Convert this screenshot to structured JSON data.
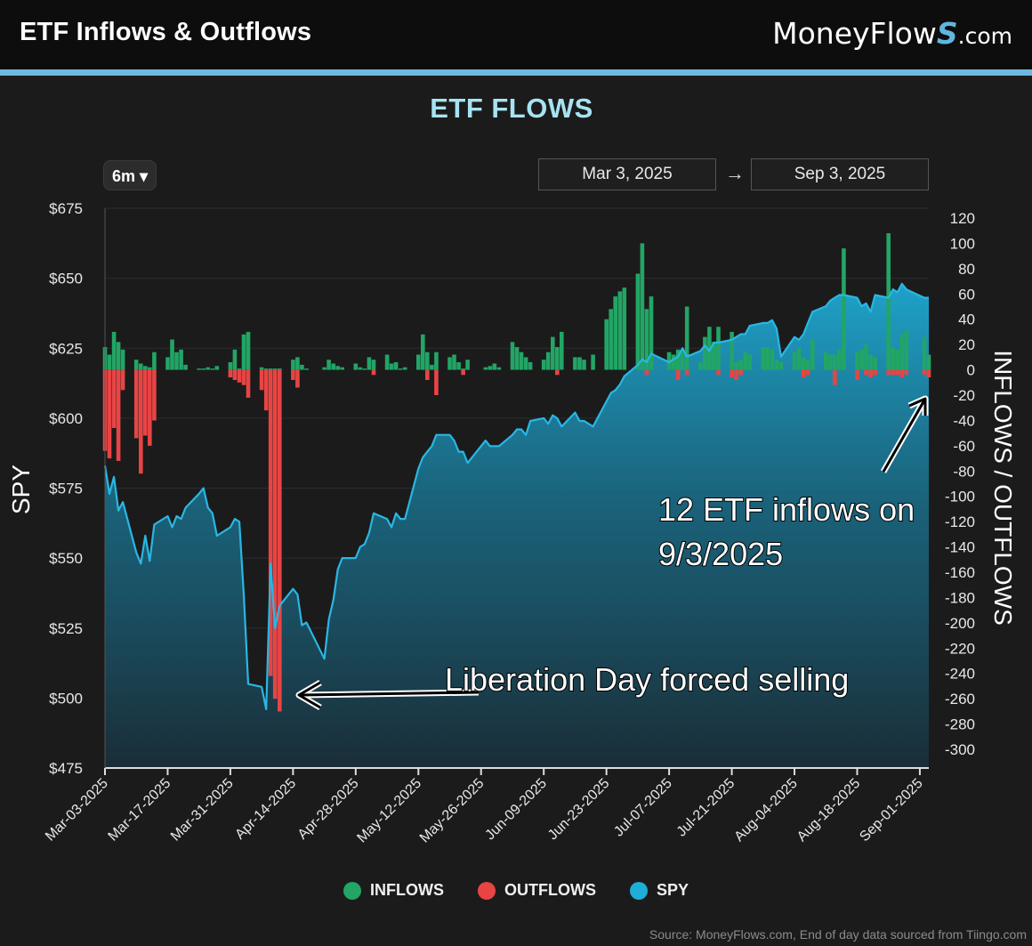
{
  "header": {
    "title": "ETF Inflows & Outflows",
    "brand_prefix": "MoneyFlow",
    "brand_mark": "S",
    "brand_suffix": ".com"
  },
  "controls": {
    "range": "6m ▾",
    "start_date": "Mar 3, 2025",
    "arrow": "→",
    "end_date": "Sep 3, 2025"
  },
  "annotations": {
    "liberation": "Liberation Day forced selling",
    "inflows_line1": "12 ETF inflows on",
    "inflows_line2": "9/3/2025"
  },
  "legend": [
    {
      "label": "INFLOWS",
      "color": "#22a565"
    },
    {
      "label": "OUTFLOWS",
      "color": "#e84444"
    },
    {
      "label": "SPY",
      "color": "#1eaed8"
    }
  ],
  "source": "Source: MoneyFlows.com, End of day data sourced from Tiingo.com",
  "chart_data": {
    "type": "bar",
    "title": "ETF FLOWS",
    "ylabel_left": "SPY",
    "ylabel_right": "INFLOWS / OUTFLOWS",
    "y_left_ticks": [
      "$675",
      "$650",
      "$625",
      "$600",
      "$575",
      "$550",
      "$525",
      "$500",
      "$475"
    ],
    "y_right_ticks": [
      "120",
      "100",
      "80",
      "60",
      "40",
      "20",
      "0",
      "-20",
      "-40",
      "-60",
      "-80",
      "-100",
      "-120",
      "-140",
      "-160",
      "-180",
      "-200",
      "-220",
      "-240",
      "-260",
      "-280",
      "-300"
    ],
    "ylim_left": [
      475,
      675
    ],
    "ylim_right": [
      -300,
      120
    ],
    "x_ticks": [
      "Mar-03-2025",
      "Mar-17-2025",
      "Mar-31-2025",
      "Apr-14-2025",
      "Apr-28-2025",
      "May-12-2025",
      "May-26-2025",
      "Jun-09-2025",
      "Jun-23-2025",
      "Jul-07-2025",
      "Jul-21-2025",
      "Aug-04-2025",
      "Aug-18-2025",
      "Sep-01-2025"
    ],
    "xlim": [
      "Mar-03-2025",
      "Sep-03-2025"
    ],
    "series": [
      {
        "name": "INFLOWS",
        "color": "#22a565",
        "x": [
          "Mar-03-2025",
          "Mar-04-2025",
          "Mar-05-2025",
          "Mar-06-2025",
          "Mar-07-2025",
          "Mar-10-2025",
          "Mar-11-2025",
          "Mar-12-2025",
          "Mar-13-2025",
          "Mar-14-2025",
          "Mar-17-2025",
          "Mar-18-2025",
          "Mar-19-2025",
          "Mar-20-2025",
          "Mar-21-2025",
          "Mar-24-2025",
          "Mar-25-2025",
          "Mar-26-2025",
          "Mar-27-2025",
          "Mar-28-2025",
          "Mar-31-2025",
          "Apr-01-2025",
          "Apr-02-2025",
          "Apr-03-2025",
          "Apr-04-2025",
          "Apr-07-2025",
          "Apr-08-2025",
          "Apr-09-2025",
          "Apr-10-2025",
          "Apr-11-2025",
          "Apr-14-2025",
          "Apr-15-2025",
          "Apr-16-2025",
          "Apr-17-2025",
          "Apr-21-2025",
          "Apr-22-2025",
          "Apr-23-2025",
          "Apr-24-2025",
          "Apr-25-2025",
          "Apr-28-2025",
          "Apr-29-2025",
          "Apr-30-2025",
          "May-01-2025",
          "May-02-2025",
          "May-05-2025",
          "May-06-2025",
          "May-07-2025",
          "May-08-2025",
          "May-09-2025",
          "May-12-2025",
          "May-13-2025",
          "May-14-2025",
          "May-15-2025",
          "May-16-2025",
          "May-19-2025",
          "May-20-2025",
          "May-21-2025",
          "May-22-2025",
          "May-23-2025",
          "May-27-2025",
          "May-28-2025",
          "May-29-2025",
          "May-30-2025",
          "Jun-02-2025",
          "Jun-03-2025",
          "Jun-04-2025",
          "Jun-05-2025",
          "Jun-06-2025",
          "Jun-09-2025",
          "Jun-10-2025",
          "Jun-11-2025",
          "Jun-12-2025",
          "Jun-13-2025",
          "Jun-16-2025",
          "Jun-17-2025",
          "Jun-18-2025",
          "Jun-20-2025",
          "Jun-23-2025",
          "Jun-24-2025",
          "Jun-25-2025",
          "Jun-26-2025",
          "Jun-27-2025",
          "Jun-30-2025",
          "Jul-01-2025",
          "Jul-02-2025",
          "Jul-03-2025",
          "Jul-07-2025",
          "Jul-08-2025",
          "Jul-09-2025",
          "Jul-10-2025",
          "Jul-11-2025",
          "Jul-14-2025",
          "Jul-15-2025",
          "Jul-16-2025",
          "Jul-17-2025",
          "Jul-18-2025",
          "Jul-21-2025",
          "Jul-22-2025",
          "Jul-23-2025",
          "Jul-24-2025",
          "Jul-25-2025",
          "Jul-28-2025",
          "Jul-29-2025",
          "Jul-30-2025",
          "Jul-31-2025",
          "Aug-01-2025",
          "Aug-04-2025",
          "Aug-05-2025",
          "Aug-06-2025",
          "Aug-07-2025",
          "Aug-08-2025",
          "Aug-11-2025",
          "Aug-12-2025",
          "Aug-13-2025",
          "Aug-14-2025",
          "Aug-15-2025",
          "Aug-18-2025",
          "Aug-19-2025",
          "Aug-20-2025",
          "Aug-21-2025",
          "Aug-22-2025",
          "Aug-25-2025",
          "Aug-26-2025",
          "Aug-27-2025",
          "Aug-28-2025",
          "Aug-29-2025",
          "Sep-02-2025",
          "Sep-03-2025"
        ],
        "values": [
          18,
          12,
          30,
          22,
          16,
          8,
          5,
          3,
          2,
          14,
          10,
          24,
          14,
          16,
          4,
          1,
          1,
          2,
          1,
          3,
          6,
          16,
          1,
          28,
          30,
          2,
          1,
          1,
          1,
          1,
          8,
          10,
          4,
          1,
          2,
          8,
          5,
          3,
          2,
          5,
          2,
          1,
          10,
          8,
          12,
          5,
          6,
          1,
          2,
          12,
          28,
          14,
          4,
          14,
          10,
          12,
          6,
          1,
          8,
          2,
          3,
          5,
          2,
          22,
          18,
          14,
          10,
          6,
          8,
          14,
          26,
          18,
          30,
          10,
          10,
          8,
          12,
          40,
          48,
          58,
          62,
          65,
          76,
          100,
          48,
          58,
          14,
          12,
          16,
          14,
          50,
          6,
          26,
          34,
          22,
          34,
          30,
          6,
          8,
          14,
          12,
          18,
          18,
          16,
          8,
          6,
          14,
          18,
          10,
          8,
          24,
          14,
          12,
          12,
          16,
          96,
          14,
          16,
          20,
          12,
          10,
          108,
          18,
          16,
          28,
          32,
          26,
          12
        ]
      },
      {
        "name": "OUTFLOWS",
        "color": "#e84444",
        "x": [
          "Mar-03-2025",
          "Mar-04-2025",
          "Mar-05-2025",
          "Mar-06-2025",
          "Mar-07-2025",
          "Mar-10-2025",
          "Mar-11-2025",
          "Mar-12-2025",
          "Mar-13-2025",
          "Mar-14-2025",
          "Mar-31-2025",
          "Apr-01-2025",
          "Apr-02-2025",
          "Apr-03-2025",
          "Apr-04-2025",
          "Apr-07-2025",
          "Apr-08-2025",
          "Apr-09-2025",
          "Apr-10-2025",
          "Apr-11-2025",
          "Apr-14-2025",
          "Apr-15-2025",
          "May-02-2025",
          "May-14-2025",
          "May-16-2025",
          "May-22-2025",
          "Jun-12-2025",
          "Jul-02-2025",
          "Jul-09-2025",
          "Jul-11-2025",
          "Jul-18-2025",
          "Jul-21-2025",
          "Jul-22-2025",
          "Jul-23-2025",
          "Aug-06-2025",
          "Aug-07-2025",
          "Aug-13-2025",
          "Aug-18-2025",
          "Aug-20-2025",
          "Aug-21-2025",
          "Aug-22-2025",
          "Aug-25-2025",
          "Aug-26-2025",
          "Aug-27-2025",
          "Aug-28-2025",
          "Aug-29-2025",
          "Sep-02-2025",
          "Sep-03-2025"
        ],
        "values": [
          -64,
          -70,
          -46,
          -72,
          -16,
          -54,
          -82,
          -52,
          -60,
          -40,
          -6,
          -8,
          -10,
          -12,
          -22,
          -16,
          -32,
          -242,
          -260,
          -270,
          -8,
          -14,
          -4,
          -8,
          -20,
          -4,
          -4,
          -4,
          -8,
          -4,
          -4,
          -6,
          -8,
          -4,
          -6,
          -4,
          -12,
          -8,
          -4,
          -6,
          -4,
          -4,
          -4,
          -4,
          -6,
          -4,
          -4,
          -6
        ]
      },
      {
        "name": "SPY",
        "color": "#1eaed8",
        "x": [
          "Mar-03-2025",
          "Mar-04-2025",
          "Mar-05-2025",
          "Mar-06-2025",
          "Mar-07-2025",
          "Mar-10-2025",
          "Mar-11-2025",
          "Mar-12-2025",
          "Mar-13-2025",
          "Mar-14-2025",
          "Mar-17-2025",
          "Mar-18-2025",
          "Mar-19-2025",
          "Mar-20-2025",
          "Mar-21-2025",
          "Mar-24-2025",
          "Mar-25-2025",
          "Mar-26-2025",
          "Mar-27-2025",
          "Mar-28-2025",
          "Mar-31-2025",
          "Apr-01-2025",
          "Apr-02-2025",
          "Apr-03-2025",
          "Apr-04-2025",
          "Apr-07-2025",
          "Apr-08-2025",
          "Apr-09-2025",
          "Apr-10-2025",
          "Apr-11-2025",
          "Apr-14-2025",
          "Apr-15-2025",
          "Apr-16-2025",
          "Apr-17-2025",
          "Apr-21-2025",
          "Apr-22-2025",
          "Apr-23-2025",
          "Apr-24-2025",
          "Apr-25-2025",
          "Apr-28-2025",
          "Apr-29-2025",
          "Apr-30-2025",
          "May-01-2025",
          "May-02-2025",
          "May-05-2025",
          "May-06-2025",
          "May-07-2025",
          "May-08-2025",
          "May-09-2025",
          "May-12-2025",
          "May-13-2025",
          "May-14-2025",
          "May-15-2025",
          "May-16-2025",
          "May-19-2025",
          "May-20-2025",
          "May-21-2025",
          "May-22-2025",
          "May-23-2025",
          "May-27-2025",
          "May-28-2025",
          "May-29-2025",
          "May-30-2025",
          "Jun-02-2025",
          "Jun-03-2025",
          "Jun-04-2025",
          "Jun-05-2025",
          "Jun-06-2025",
          "Jun-09-2025",
          "Jun-10-2025",
          "Jun-11-2025",
          "Jun-12-2025",
          "Jun-13-2025",
          "Jun-16-2025",
          "Jun-17-2025",
          "Jun-18-2025",
          "Jun-20-2025",
          "Jun-23-2025",
          "Jun-24-2025",
          "Jun-25-2025",
          "Jun-26-2025",
          "Jun-27-2025",
          "Jun-30-2025",
          "Jul-01-2025",
          "Jul-02-2025",
          "Jul-03-2025",
          "Jul-07-2025",
          "Jul-08-2025",
          "Jul-09-2025",
          "Jul-10-2025",
          "Jul-11-2025",
          "Jul-14-2025",
          "Jul-15-2025",
          "Jul-16-2025",
          "Jul-17-2025",
          "Jul-18-2025",
          "Jul-21-2025",
          "Jul-22-2025",
          "Jul-23-2025",
          "Jul-24-2025",
          "Jul-25-2025",
          "Jul-28-2025",
          "Jul-29-2025",
          "Jul-30-2025",
          "Jul-31-2025",
          "Aug-01-2025",
          "Aug-04-2025",
          "Aug-05-2025",
          "Aug-06-2025",
          "Aug-07-2025",
          "Aug-08-2025",
          "Aug-11-2025",
          "Aug-12-2025",
          "Aug-13-2025",
          "Aug-14-2025",
          "Aug-15-2025",
          "Aug-18-2025",
          "Aug-19-2025",
          "Aug-20-2025",
          "Aug-21-2025",
          "Aug-22-2025",
          "Aug-25-2025",
          "Aug-26-2025",
          "Aug-27-2025",
          "Aug-28-2025",
          "Aug-29-2025",
          "Sep-02-2025",
          "Sep-03-2025"
        ],
        "values": [
          583,
          573,
          579,
          567,
          570,
          552,
          548,
          558,
          549,
          562,
          565,
          561,
          565,
          564,
          568,
          573,
          575,
          568,
          566,
          558,
          561,
          564,
          563,
          537,
          505,
          504,
          496,
          548,
          525,
          533,
          539,
          537,
          526,
          527,
          514,
          528,
          535,
          546,
          550,
          550,
          554,
          555,
          559,
          566,
          564,
          561,
          566,
          564,
          564,
          582,
          586,
          588,
          590,
          594,
          594,
          592,
          588,
          588,
          584,
          592,
          590,
          590,
          590,
          594,
          596,
          596,
          594,
          599,
          600,
          598,
          601,
          600,
          597,
          602,
          599,
          599,
          597,
          606,
          609,
          610,
          612,
          615,
          619,
          621,
          620,
          623,
          620,
          621,
          622,
          625,
          622,
          624,
          626,
          624,
          627,
          627,
          628,
          629,
          630,
          630,
          633,
          634,
          634,
          635,
          632,
          622,
          629,
          628,
          630,
          634,
          638,
          640,
          642,
          643,
          644,
          644,
          643,
          640,
          641,
          638,
          644,
          643,
          646,
          645,
          648,
          646,
          643,
          643
        ]
      }
    ]
  }
}
